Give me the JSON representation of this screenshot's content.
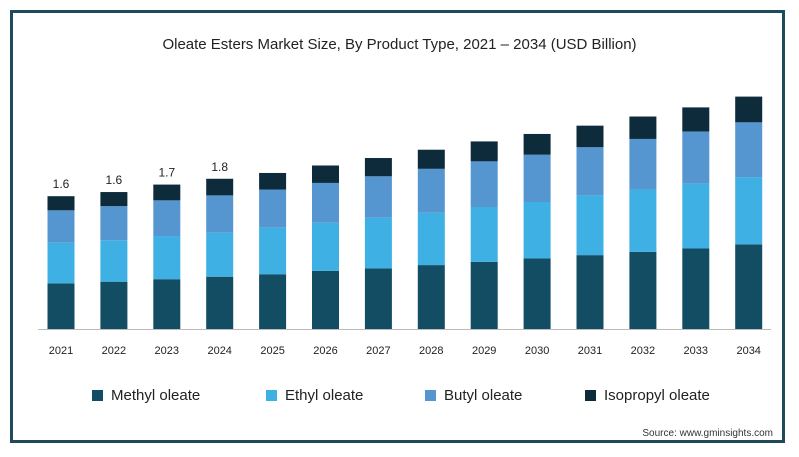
{
  "chart_data": {
    "type": "bar",
    "stacked": true,
    "title": "Oleate Esters Market Size, By Product Type, 2021 – 2034 (USD Billion)",
    "categories": [
      "2021",
      "2022",
      "2023",
      "2024",
      "2025",
      "2026",
      "2027",
      "2028",
      "2029",
      "2030",
      "2031",
      "2032",
      "2033",
      "2034"
    ],
    "series": [
      {
        "name": "Methyl oleate",
        "color": "#134d63",
        "values": [
          0.55,
          0.57,
          0.6,
          0.63,
          0.66,
          0.7,
          0.73,
          0.77,
          0.81,
          0.85,
          0.89,
          0.93,
          0.97,
          1.02
        ]
      },
      {
        "name": "Ethyl oleate",
        "color": "#3fb0e3",
        "values": [
          0.49,
          0.5,
          0.52,
          0.53,
          0.56,
          0.58,
          0.61,
          0.63,
          0.66,
          0.68,
          0.72,
          0.75,
          0.78,
          0.81
        ]
      },
      {
        "name": "Butyl oleate",
        "color": "#5596d0",
        "values": [
          0.39,
          0.41,
          0.43,
          0.45,
          0.46,
          0.48,
          0.5,
          0.53,
          0.55,
          0.57,
          0.58,
          0.61,
          0.63,
          0.66
        ]
      },
      {
        "name": "Isopropyl oleate",
        "color": "#0d2b3b",
        "values": [
          0.17,
          0.17,
          0.19,
          0.2,
          0.2,
          0.21,
          0.22,
          0.23,
          0.24,
          0.25,
          0.26,
          0.27,
          0.29,
          0.31
        ]
      }
    ],
    "data_labels": [
      "1.6",
      "1.6",
      "1.7",
      "1.8",
      "",
      "",
      "",
      "",
      "",
      "",
      "",
      "",
      "",
      ""
    ],
    "ylim": [
      0,
      3.0
    ],
    "grid": false,
    "legend_position": "bottom"
  },
  "source": "Source: www.gminsights.com"
}
